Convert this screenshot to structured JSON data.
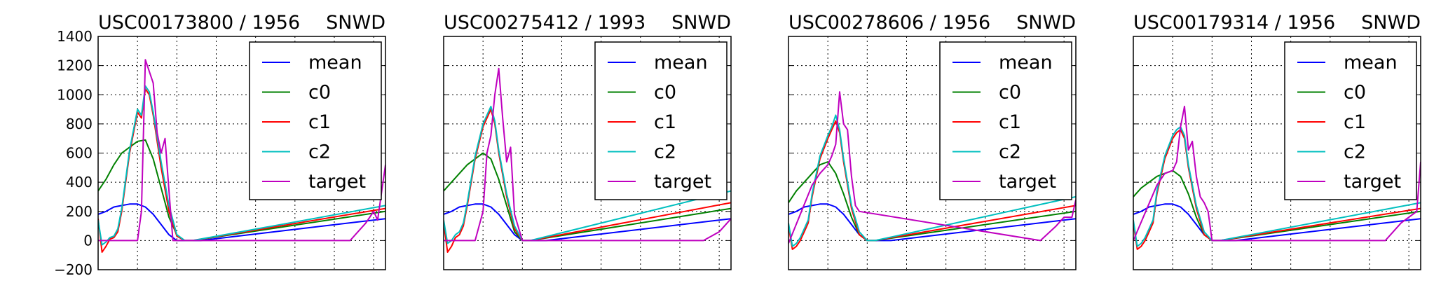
{
  "figure": {
    "y_ticks": [
      "1400",
      "1200",
      "1000",
      "800",
      "600",
      "400",
      "200",
      "0",
      "−200"
    ],
    "legend_items": [
      "mean",
      "c0",
      "c1",
      "c2",
      "target"
    ],
    "colors": {
      "mean": "#0000ff",
      "c0": "#008000",
      "c1": "#ff0000",
      "c2": "#00bfbf",
      "target": "#bf00bf"
    }
  },
  "chart_data": [
    {
      "type": "line",
      "title_left": "USC00173800 / 1956",
      "title_right": "SNWD",
      "xlim": [
        0,
        365
      ],
      "ylim": [
        -200,
        1400
      ],
      "grid": true,
      "legend_placement": "top-right",
      "series": [
        {
          "name": "mean",
          "x": [
            0,
            10,
            20,
            30,
            40,
            50,
            60,
            70,
            80,
            90,
            100,
            110,
            120,
            130,
            365
          ],
          "y": [
            180,
            200,
            230,
            240,
            250,
            250,
            230,
            180,
            110,
            40,
            0,
            0,
            0,
            0,
            150
          ]
        },
        {
          "name": "c0",
          "x": [
            0,
            10,
            20,
            30,
            40,
            50,
            60,
            70,
            80,
            90,
            100,
            110,
            120,
            365
          ],
          "y": [
            340,
            420,
            520,
            600,
            640,
            680,
            690,
            560,
            360,
            160,
            40,
            0,
            0,
            200
          ]
        },
        {
          "name": "c1",
          "x": [
            0,
            5,
            10,
            15,
            20,
            25,
            30,
            40,
            50,
            55,
            60,
            65,
            70,
            80,
            90,
            100,
            110,
            120,
            365
          ],
          "y": [
            150,
            -80,
            -40,
            10,
            20,
            60,
            200,
            600,
            880,
            840,
            1040,
            1000,
            860,
            500,
            200,
            30,
            0,
            0,
            220
          ]
        },
        {
          "name": "c2",
          "x": [
            0,
            5,
            10,
            15,
            20,
            25,
            30,
            40,
            50,
            55,
            60,
            65,
            70,
            80,
            90,
            100,
            110,
            120,
            365
          ],
          "y": [
            140,
            -30,
            -10,
            20,
            30,
            80,
            220,
            620,
            900,
            860,
            1060,
            1020,
            880,
            540,
            240,
            40,
            0,
            0,
            240
          ]
        },
        {
          "name": "target",
          "x": [
            0,
            30,
            40,
            50,
            55,
            60,
            65,
            70,
            75,
            80,
            85,
            90,
            95,
            110,
            320,
            340,
            350,
            355,
            365
          ],
          "y": [
            0,
            0,
            0,
            0,
            200,
            1240,
            1160,
            1080,
            740,
            600,
            700,
            340,
            0,
            0,
            0,
            120,
            200,
            140,
            520
          ]
        }
      ]
    },
    {
      "type": "line",
      "title_left": "USC00275412 / 1993",
      "title_right": "SNWD",
      "xlim": [
        0,
        365
      ],
      "ylim": [
        -200,
        1400
      ],
      "grid": true,
      "legend_placement": "top-right",
      "series": [
        {
          "name": "mean",
          "x": [
            0,
            10,
            20,
            30,
            40,
            50,
            60,
            70,
            80,
            90,
            100,
            110,
            120,
            130,
            365
          ],
          "y": [
            180,
            200,
            230,
            240,
            250,
            250,
            230,
            180,
            110,
            40,
            0,
            0,
            0,
            0,
            150
          ]
        },
        {
          "name": "c0",
          "x": [
            0,
            10,
            20,
            30,
            40,
            50,
            60,
            70,
            80,
            90,
            100,
            110,
            365
          ],
          "y": [
            340,
            400,
            460,
            520,
            560,
            600,
            560,
            420,
            240,
            60,
            0,
            0,
            220
          ]
        },
        {
          "name": "c1",
          "x": [
            0,
            5,
            10,
            15,
            20,
            25,
            30,
            40,
            50,
            55,
            60,
            65,
            70,
            80,
            90,
            100,
            110,
            365
          ],
          "y": [
            120,
            -80,
            -40,
            20,
            40,
            100,
            240,
            560,
            780,
            840,
            900,
            800,
            600,
            300,
            80,
            0,
            0,
            260
          ]
        },
        {
          "name": "c2",
          "x": [
            0,
            5,
            10,
            15,
            20,
            25,
            30,
            40,
            50,
            55,
            60,
            65,
            70,
            80,
            90,
            100,
            110,
            365
          ],
          "y": [
            140,
            -20,
            0,
            40,
            60,
            120,
            260,
            580,
            800,
            860,
            920,
            820,
            620,
            320,
            100,
            0,
            0,
            340
          ]
        },
        {
          "name": "target",
          "x": [
            0,
            20,
            30,
            40,
            50,
            55,
            60,
            65,
            70,
            75,
            80,
            85,
            90,
            100,
            330,
            350,
            360,
            365
          ],
          "y": [
            0,
            0,
            0,
            0,
            200,
            600,
            720,
            1000,
            1180,
            840,
            540,
            640,
            180,
            0,
            0,
            60,
            120,
            150
          ]
        }
      ]
    },
    {
      "type": "line",
      "title_left": "USC00278606 / 1956",
      "title_right": "SNWD",
      "xlim": [
        0,
        365
      ],
      "ylim": [
        -200,
        1400
      ],
      "grid": true,
      "legend_placement": "top-right",
      "series": [
        {
          "name": "mean",
          "x": [
            0,
            10,
            20,
            30,
            40,
            50,
            60,
            70,
            80,
            90,
            100,
            110,
            120,
            130,
            365
          ],
          "y": [
            180,
            200,
            230,
            240,
            250,
            250,
            230,
            180,
            110,
            40,
            0,
            0,
            0,
            0,
            150
          ]
        },
        {
          "name": "c0",
          "x": [
            0,
            10,
            20,
            30,
            40,
            50,
            60,
            70,
            80,
            90,
            100,
            110,
            365
          ],
          "y": [
            260,
            340,
            400,
            460,
            520,
            540,
            460,
            320,
            160,
            40,
            0,
            0,
            200
          ]
        },
        {
          "name": "c1",
          "x": [
            0,
            5,
            10,
            15,
            20,
            25,
            30,
            40,
            50,
            55,
            60,
            65,
            70,
            80,
            90,
            100,
            110,
            365
          ],
          "y": [
            100,
            -60,
            -40,
            0,
            60,
            120,
            300,
            560,
            700,
            760,
            820,
            740,
            540,
            220,
            40,
            0,
            0,
            240
          ]
        },
        {
          "name": "c2",
          "x": [
            0,
            5,
            10,
            15,
            20,
            25,
            30,
            40,
            50,
            55,
            60,
            65,
            70,
            80,
            90,
            100,
            110,
            365
          ],
          "y": [
            120,
            -40,
            -20,
            20,
            80,
            140,
            320,
            580,
            720,
            780,
            860,
            760,
            560,
            240,
            60,
            0,
            0,
            300
          ]
        },
        {
          "name": "target",
          "x": [
            0,
            30,
            40,
            50,
            55,
            60,
            65,
            70,
            75,
            80,
            85,
            90,
            320,
            340,
            350,
            360,
            365
          ],
          "y": [
            -20,
            380,
            460,
            520,
            580,
            660,
            1020,
            800,
            760,
            440,
            240,
            200,
            0,
            100,
            160,
            160,
            280
          ]
        }
      ]
    },
    {
      "type": "line",
      "title_left": "USC00179314 / 1956",
      "title_right": "SNWD",
      "xlim": [
        0,
        365
      ],
      "ylim": [
        -200,
        1400
      ],
      "grid": true,
      "legend_placement": "top-right",
      "series": [
        {
          "name": "mean",
          "x": [
            0,
            10,
            20,
            30,
            40,
            50,
            60,
            70,
            80,
            90,
            100,
            110,
            120,
            130,
            365
          ],
          "y": [
            180,
            200,
            230,
            240,
            250,
            250,
            230,
            180,
            110,
            40,
            0,
            0,
            0,
            0,
            150
          ]
        },
        {
          "name": "c0",
          "x": [
            0,
            10,
            20,
            30,
            40,
            50,
            60,
            70,
            80,
            90,
            100,
            110,
            365
          ],
          "y": [
            300,
            360,
            400,
            440,
            460,
            480,
            440,
            320,
            160,
            40,
            0,
            0,
            200
          ]
        },
        {
          "name": "c1",
          "x": [
            0,
            5,
            10,
            15,
            20,
            25,
            30,
            40,
            50,
            55,
            60,
            65,
            70,
            80,
            90,
            100,
            110,
            365
          ],
          "y": [
            120,
            -60,
            -40,
            0,
            60,
            120,
            320,
            560,
            700,
            740,
            760,
            700,
            500,
            220,
            40,
            0,
            0,
            220
          ]
        },
        {
          "name": "c2",
          "x": [
            0,
            5,
            10,
            15,
            20,
            25,
            30,
            40,
            50,
            55,
            60,
            65,
            70,
            80,
            90,
            100,
            110,
            365
          ],
          "y": [
            140,
            -40,
            -20,
            20,
            80,
            140,
            340,
            580,
            720,
            760,
            780,
            720,
            520,
            240,
            60,
            0,
            0,
            260
          ]
        },
        {
          "name": "target",
          "x": [
            0,
            30,
            40,
            50,
            55,
            60,
            65,
            70,
            75,
            80,
            85,
            90,
            95,
            100,
            320,
            340,
            350,
            360,
            365
          ],
          "y": [
            0,
            380,
            460,
            480,
            540,
            780,
            920,
            620,
            680,
            440,
            300,
            260,
            200,
            0,
            0,
            120,
            160,
            200,
            540
          ]
        }
      ]
    }
  ]
}
